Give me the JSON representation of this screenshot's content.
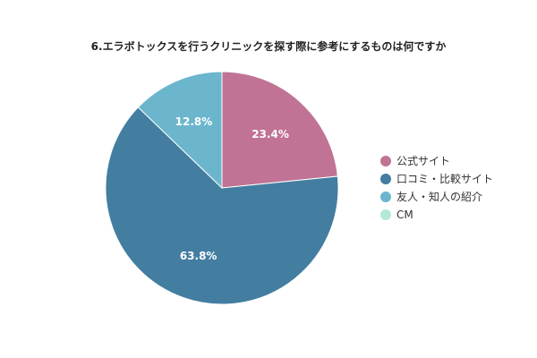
{
  "chart_data": {
    "type": "pie",
    "title": "6.エラボトックスを行うクリニックを探す際に参考にするものは何ですか",
    "categories": [
      "公式サイト",
      "口コミ・比較サイト",
      "友人・知人の紹介",
      "CM"
    ],
    "values": [
      23.4,
      63.8,
      12.8,
      0.0
    ],
    "value_labels": [
      "23.4%",
      "63.8%",
      "12.8%",
      ""
    ],
    "colors": [
      "#c07395",
      "#437ea1",
      "#6bb6cd",
      "#b4e8d7"
    ],
    "start_angle_deg": 0,
    "direction": "clockwise",
    "legend_position": "right"
  }
}
